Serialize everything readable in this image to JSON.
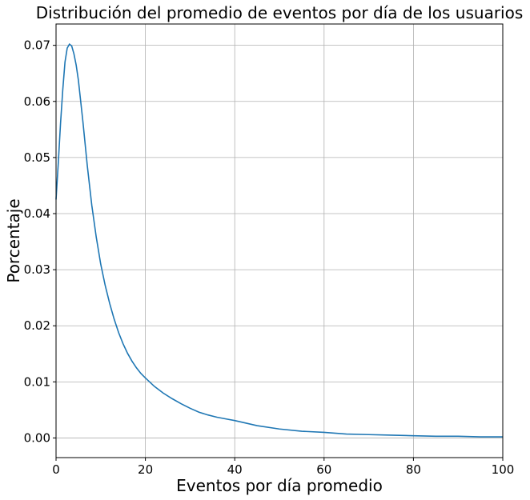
{
  "chart_data": {
    "type": "line",
    "title": "Distribución del promedio de eventos por día de los usuarios",
    "xlabel": "Eventos por día promedio",
    "ylabel": "Porcentaje",
    "xlim": [
      0,
      100
    ],
    "ylim": [
      -0.0035,
      0.0738
    ],
    "xticks": [
      0,
      20,
      40,
      60,
      80,
      100
    ],
    "xtick_labels": [
      "0",
      "20",
      "40",
      "60",
      "80",
      "100"
    ],
    "yticks": [
      0.0,
      0.01,
      0.02,
      0.03,
      0.04,
      0.05,
      0.06,
      0.07
    ],
    "ytick_labels": [
      "0.00",
      "0.01",
      "0.02",
      "0.03",
      "0.04",
      "0.05",
      "0.06",
      "0.07"
    ],
    "grid": true,
    "color": "#1f77b4",
    "series": [
      {
        "x": [
          0,
          0.5,
          1,
          1.5,
          2,
          2.5,
          3,
          3.5,
          4,
          4.5,
          5,
          6,
          7,
          8,
          9,
          10,
          11,
          12,
          13,
          14,
          15,
          16,
          17,
          18,
          19,
          20,
          22,
          24,
          26,
          28,
          30,
          32,
          34,
          36,
          38,
          40,
          45,
          50,
          55,
          60,
          65,
          70,
          75,
          80,
          85,
          90,
          95,
          100
        ],
        "y": [
          0.0425,
          0.049,
          0.056,
          0.062,
          0.067,
          0.0695,
          0.0702,
          0.0699,
          0.0685,
          0.0665,
          0.0638,
          0.0565,
          0.0485,
          0.0415,
          0.0358,
          0.031,
          0.0272,
          0.024,
          0.0212,
          0.0188,
          0.0168,
          0.0151,
          0.0137,
          0.0125,
          0.0115,
          0.0107,
          0.0092,
          0.008,
          0.007,
          0.0061,
          0.0053,
          0.0046,
          0.0041,
          0.0037,
          0.0034,
          0.0031,
          0.0022,
          0.0016,
          0.0012,
          0.001,
          0.0007,
          0.0006,
          0.0005,
          0.0004,
          0.0003,
          0.0003,
          0.0002,
          0.0002
        ]
      }
    ]
  }
}
